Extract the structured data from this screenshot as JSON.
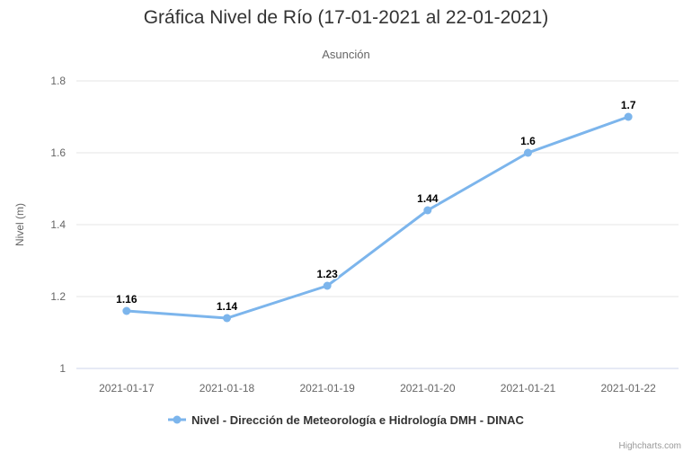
{
  "credits": "Highcharts.com",
  "colors": {
    "series": "#7cb5ec",
    "grid": "#e6e6e6",
    "axis_line": "#ccd6eb",
    "title_text": "#333333",
    "axis_text": "#666666",
    "data_label_text": "#000000",
    "credits_text": "#999999"
  },
  "chart_data": {
    "type": "line",
    "title": "Gráfica Nivel de Río (17-01-2021 al 22-01-2021)",
    "subtitle": "Asunción",
    "categories": [
      "2021-01-17",
      "2021-01-18",
      "2021-01-19",
      "2021-01-20",
      "2021-01-21",
      "2021-01-22"
    ],
    "series": [
      {
        "name": "Nivel - Dirección de Meteorología e Hidrología DMH - DINAC",
        "color": "#7cb5ec",
        "values": [
          1.16,
          1.14,
          1.23,
          1.44,
          1.6,
          1.7
        ],
        "data_labels": [
          "1.16",
          "1.14",
          "1.23",
          "1.44",
          "1.6",
          "1.7"
        ]
      }
    ],
    "xlabel": "",
    "ylabel": "Nivel (m)",
    "ylim": [
      1,
      1.8
    ],
    "yticks": [
      1,
      1.2,
      1.4,
      1.6,
      1.8
    ],
    "ytick_labels": [
      "1",
      "1.2",
      "1.4",
      "1.6",
      "1.8"
    ],
    "grid": true,
    "legend_position": "bottom",
    "marker": "circle"
  }
}
